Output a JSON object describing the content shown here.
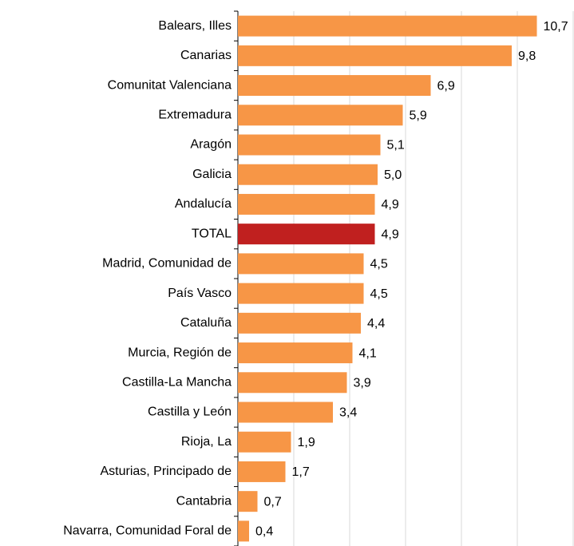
{
  "chart_data": {
    "type": "hbar",
    "categories": [
      "Balears, Illes",
      "Canarias",
      "Comunitat Valenciana",
      "Extremadura",
      "Aragón",
      "Galicia",
      "Andalucía",
      "TOTAL",
      "Madrid, Comunidad de",
      "País Vasco",
      "Cataluña",
      "Murcia, Región de",
      "Castilla-La Mancha",
      "Castilla y León",
      "Rioja, La",
      "Asturias, Principado de",
      "Cantabria",
      "Navarra, Comunidad Foral de"
    ],
    "values": [
      10.7,
      9.8,
      6.9,
      5.9,
      5.1,
      5.0,
      4.9,
      4.9,
      4.5,
      4.5,
      4.4,
      4.1,
      3.9,
      3.4,
      1.9,
      1.7,
      0.7,
      0.4
    ],
    "value_labels": [
      "10,7",
      "9,8",
      "6,9",
      "5,9",
      "5,1",
      "5,0",
      "4,9",
      "4,9",
      "4,5",
      "4,5",
      "4,4",
      "4,1",
      "3,9",
      "3,4",
      "1,9",
      "1,7",
      "0,7",
      "0,4"
    ],
    "colors": [
      "#f79646",
      "#f79646",
      "#f79646",
      "#f79646",
      "#f79646",
      "#f79646",
      "#f79646",
      "#c0201f",
      "#f79646",
      "#f79646",
      "#f79646",
      "#f79646",
      "#f79646",
      "#f79646",
      "#f79646",
      "#f79646",
      "#f79646",
      "#f79646"
    ],
    "xlim": [
      0,
      12
    ],
    "xticks": [
      0,
      2,
      4,
      6,
      8,
      10,
      12
    ],
    "tick_labels": false,
    "grid": true
  }
}
